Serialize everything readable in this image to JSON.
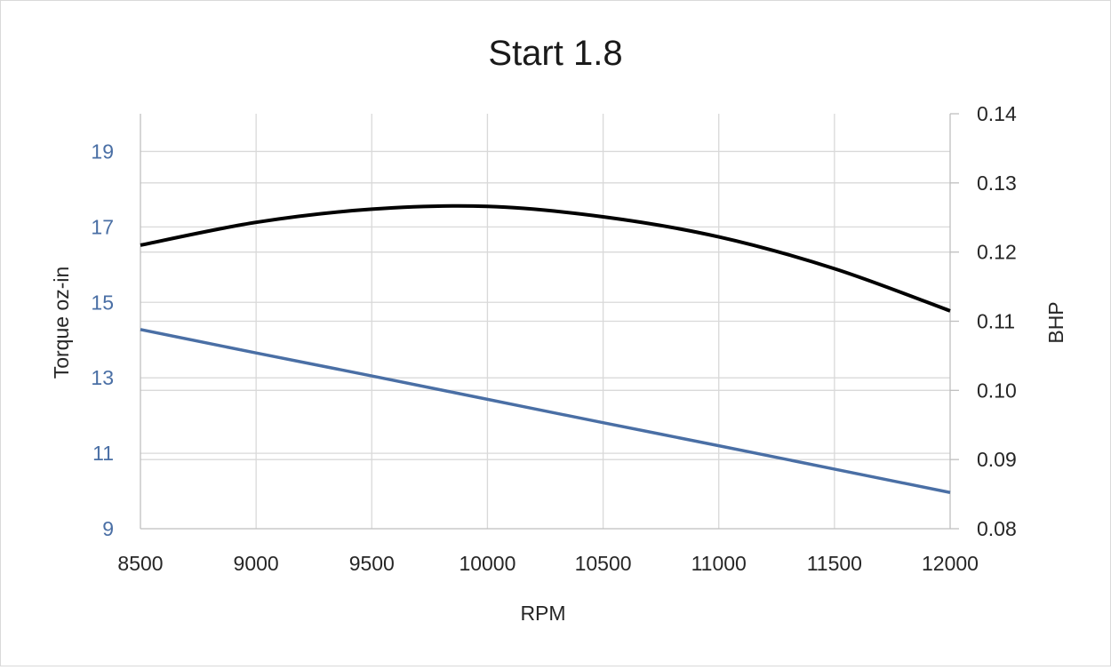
{
  "chart_data": {
    "type": "line",
    "title": "Start 1.8",
    "xlabel": "RPM",
    "ylabel_left": "Torque oz-in",
    "ylabel_right": "BHP",
    "xlim": [
      8500,
      12000
    ],
    "ylim_left": [
      9,
      20
    ],
    "ylim_right": [
      0.08,
      0.14
    ],
    "x_ticks": [
      "8500",
      "9000",
      "9500",
      "10000",
      "10500",
      "11000",
      "11500",
      "12000"
    ],
    "y_ticks_left": [
      "9",
      "11",
      "13",
      "15",
      "17",
      "19"
    ],
    "y_ticks_right": [
      "0.08",
      "0.09",
      "0.10",
      "0.11",
      "0.12",
      "0.13",
      "0.14"
    ],
    "grid": true,
    "x": [
      8500,
      9000,
      9500,
      10000,
      10500,
      11000,
      11500,
      12000
    ],
    "series": [
      {
        "axis": "left",
        "color": "#4a6fa5",
        "values": [
          14.28,
          13.66,
          13.05,
          12.43,
          11.81,
          11.2,
          10.58,
          9.96
        ]
      },
      {
        "axis": "right",
        "color": "#000000",
        "values": [
          0.121,
          0.1243,
          0.1262,
          0.1266,
          0.1251,
          0.1222,
          0.1176,
          0.1115
        ]
      }
    ],
    "colors": {
      "left_axis_text": "#4a6fa5",
      "gridline": "#d9d9d9",
      "axis_line": "#bfbfbf"
    }
  }
}
